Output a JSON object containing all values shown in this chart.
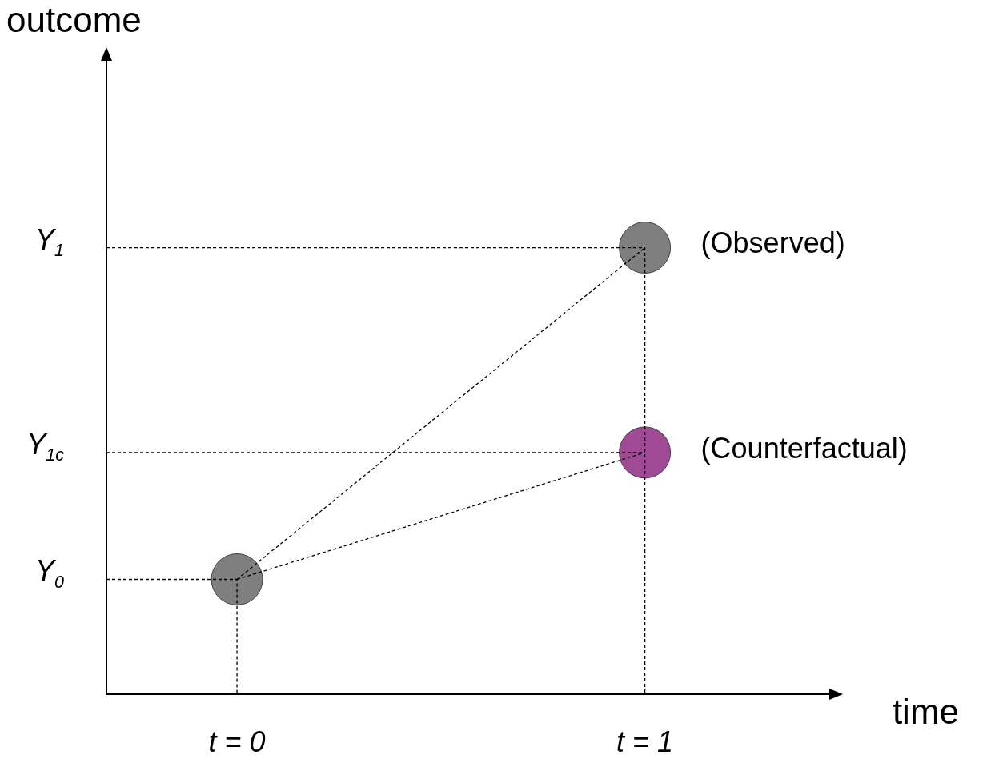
{
  "chart_data": {
    "type": "scatter",
    "xlabel": "time",
    "ylabel": "outcome",
    "xlim": [
      -0.32,
      1.46
    ],
    "ylim": [
      0,
      1.42
    ],
    "xticks": [
      {
        "value": 0,
        "label": "t = 0"
      },
      {
        "value": 1,
        "label": "t = 1"
      }
    ],
    "yticks": [
      {
        "value": 0.257,
        "label": "Y$_{0}$"
      },
      {
        "value": 0.541,
        "label": "Y$_{1c}$"
      },
      {
        "value": 1,
        "label": "Y$_{1}$"
      }
    ],
    "series": [
      {
        "name": "(Observed)",
        "color": "#7f7f7f",
        "x": [
          0,
          1
        ],
        "values": [
          0.257,
          1
        ],
        "marker": "circle"
      },
      {
        "name": "(Counterfactual)",
        "color": "#a04a96",
        "x": [
          1
        ],
        "values": [
          0.541
        ],
        "marker": "circle"
      },
      {
        "type": "line",
        "color": "#000000",
        "x": [
          0,
          1
        ],
        "values": [
          0.257,
          1
        ],
        "line_style": "dashed",
        "marker": "none"
      },
      {
        "type": "line",
        "color": "#000000",
        "x": [
          0,
          1
        ],
        "values": [
          0.257,
          0.541
        ],
        "line_style": "dashed",
        "marker": "none"
      },
      {
        "type": "line",
        "color": "#000000",
        "x": [
          -0.32,
          0,
          0
        ],
        "values": [
          0.257,
          0.257,
          0
        ],
        "line_style": "dashed",
        "marker": "none"
      },
      {
        "type": "line",
        "color": "#000000",
        "x": [
          -0.32,
          1,
          1
        ],
        "values": [
          1,
          1,
          0
        ],
        "line_style": "dashed",
        "marker": "none"
      },
      {
        "type": "line",
        "color": "#000000",
        "x": [
          -0.32,
          1
        ],
        "values": [
          0.541,
          0.541
        ],
        "line_style": "dashed",
        "marker": "none"
      }
    ]
  }
}
